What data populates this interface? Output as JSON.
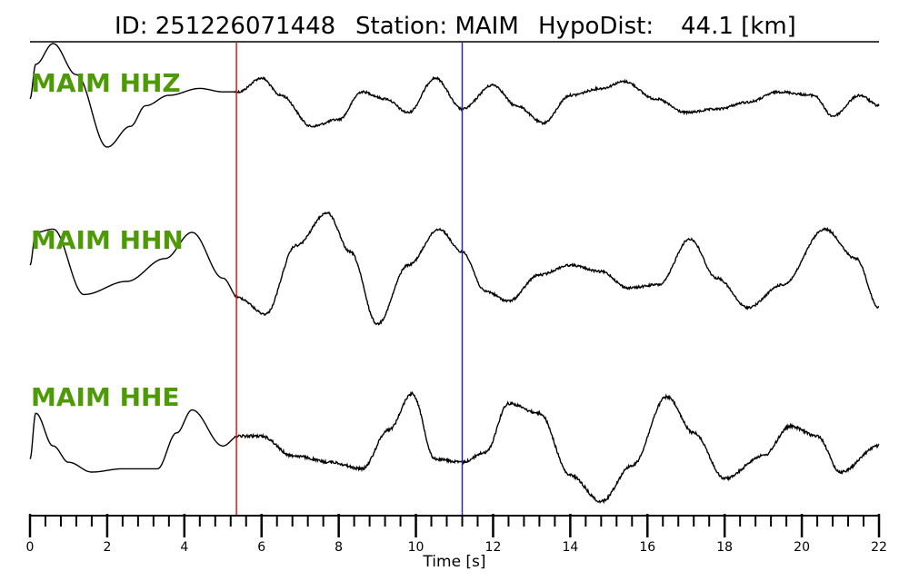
{
  "title": {
    "id_text": "ID: 251226071448",
    "station_text": "Station: MAIM",
    "dist_text": "HypoDist:",
    "dist_value": "44.1 [km]"
  },
  "colors": {
    "label": "#4e9a06",
    "trace": "#000000",
    "p_pick": "#e31a1c",
    "s_pick": "#1f2bb4"
  },
  "chart_data": {
    "type": "line",
    "xlabel": "Time [s]",
    "xlim": [
      0,
      22
    ],
    "x_major_ticks": [
      0,
      2,
      4,
      6,
      8,
      10,
      12,
      14,
      16,
      18,
      20,
      22
    ],
    "x_tick_labels": [
      "0",
      "2",
      "4",
      "6",
      "8",
      "10",
      "12",
      "14",
      "16",
      "18",
      "20",
      "22"
    ],
    "minor_tick_step": 0.4,
    "picks": [
      {
        "phase": "P",
        "time": 5.35,
        "color": "#e31a1c"
      },
      {
        "phase": "S",
        "time": 11.2,
        "color": "#1f2bb4"
      }
    ],
    "series": [
      {
        "name": "MAIM HHZ",
        "noise": 0.5,
        "noise_from": 5.3,
        "noise_to": 22,
        "points": [
          [
            0,
            0.2
          ],
          [
            0.15,
            0.7
          ],
          [
            0.6,
            1.0
          ],
          [
            1.2,
            0.55
          ],
          [
            2.0,
            -0.5
          ],
          [
            2.6,
            -0.2
          ],
          [
            3.0,
            0.1
          ],
          [
            3.6,
            0.25
          ],
          [
            4.4,
            0.35
          ],
          [
            5.0,
            0.3
          ],
          [
            5.4,
            0.3
          ],
          [
            6.0,
            0.5
          ],
          [
            6.5,
            0.25
          ],
          [
            7.3,
            -0.2
          ],
          [
            8.0,
            -0.1
          ],
          [
            8.6,
            0.3
          ],
          [
            9.2,
            0.2
          ],
          [
            9.8,
            0.0
          ],
          [
            10.5,
            0.5
          ],
          [
            11.2,
            0.05
          ],
          [
            12.0,
            0.4
          ],
          [
            12.6,
            0.1
          ],
          [
            13.3,
            -0.15
          ],
          [
            14.0,
            0.25
          ],
          [
            14.8,
            0.35
          ],
          [
            15.4,
            0.45
          ],
          [
            16.2,
            0.2
          ],
          [
            17.0,
            0.0
          ],
          [
            17.8,
            0.05
          ],
          [
            18.6,
            0.15
          ],
          [
            19.4,
            0.3
          ],
          [
            20.3,
            0.25
          ],
          [
            20.8,
            -0.05
          ],
          [
            21.5,
            0.25
          ],
          [
            22.0,
            0.1
          ]
        ]
      },
      {
        "name": "MAIM HHN",
        "noise": 0.5,
        "noise_from": 5.3,
        "noise_to": 22,
        "points": [
          [
            0,
            0.0
          ],
          [
            0.15,
            0.5
          ],
          [
            0.6,
            0.55
          ],
          [
            1.4,
            -0.45
          ],
          [
            2.5,
            -0.25
          ],
          [
            3.5,
            0.1
          ],
          [
            4.2,
            0.5
          ],
          [
            5.0,
            -0.2
          ],
          [
            5.4,
            -0.5
          ],
          [
            6.1,
            -0.75
          ],
          [
            6.9,
            0.3
          ],
          [
            7.7,
            0.8
          ],
          [
            8.3,
            0.2
          ],
          [
            9.0,
            -0.9
          ],
          [
            9.8,
            0.0
          ],
          [
            10.6,
            0.55
          ],
          [
            11.2,
            0.2
          ],
          [
            11.8,
            -0.4
          ],
          [
            12.4,
            -0.55
          ],
          [
            13.2,
            -0.15
          ],
          [
            14.0,
            0.0
          ],
          [
            14.8,
            -0.1
          ],
          [
            15.5,
            -0.35
          ],
          [
            16.3,
            -0.3
          ],
          [
            17.1,
            0.4
          ],
          [
            17.8,
            -0.2
          ],
          [
            18.6,
            -0.65
          ],
          [
            19.5,
            -0.3
          ],
          [
            20.6,
            0.55
          ],
          [
            21.4,
            0.1
          ],
          [
            22.0,
            -0.65
          ]
        ]
      },
      {
        "name": "MAIM HHE",
        "noise": 0.6,
        "noise_from": 5.3,
        "noise_to": 22,
        "points": [
          [
            0,
            -0.3
          ],
          [
            0.15,
            0.4
          ],
          [
            0.6,
            -0.1
          ],
          [
            1.0,
            -0.35
          ],
          [
            1.6,
            -0.5
          ],
          [
            2.4,
            -0.45
          ],
          [
            3.3,
            -0.45
          ],
          [
            3.8,
            0.1
          ],
          [
            4.2,
            0.45
          ],
          [
            5.0,
            -0.1
          ],
          [
            5.4,
            0.05
          ],
          [
            6.0,
            0.05
          ],
          [
            6.8,
            -0.25
          ],
          [
            7.8,
            -0.35
          ],
          [
            8.6,
            -0.45
          ],
          [
            9.3,
            0.15
          ],
          [
            9.9,
            0.7
          ],
          [
            10.5,
            -0.3
          ],
          [
            11.2,
            -0.35
          ],
          [
            11.8,
            -0.2
          ],
          [
            12.4,
            0.55
          ],
          [
            13.2,
            0.4
          ],
          [
            14.0,
            -0.55
          ],
          [
            14.8,
            -0.95
          ],
          [
            15.6,
            -0.4
          ],
          [
            16.5,
            0.65
          ],
          [
            17.2,
            0.1
          ],
          [
            18.0,
            -0.6
          ],
          [
            19.0,
            -0.25
          ],
          [
            19.7,
            0.2
          ],
          [
            20.4,
            0.05
          ],
          [
            21.0,
            -0.5
          ],
          [
            22.0,
            -0.1
          ]
        ]
      }
    ]
  }
}
